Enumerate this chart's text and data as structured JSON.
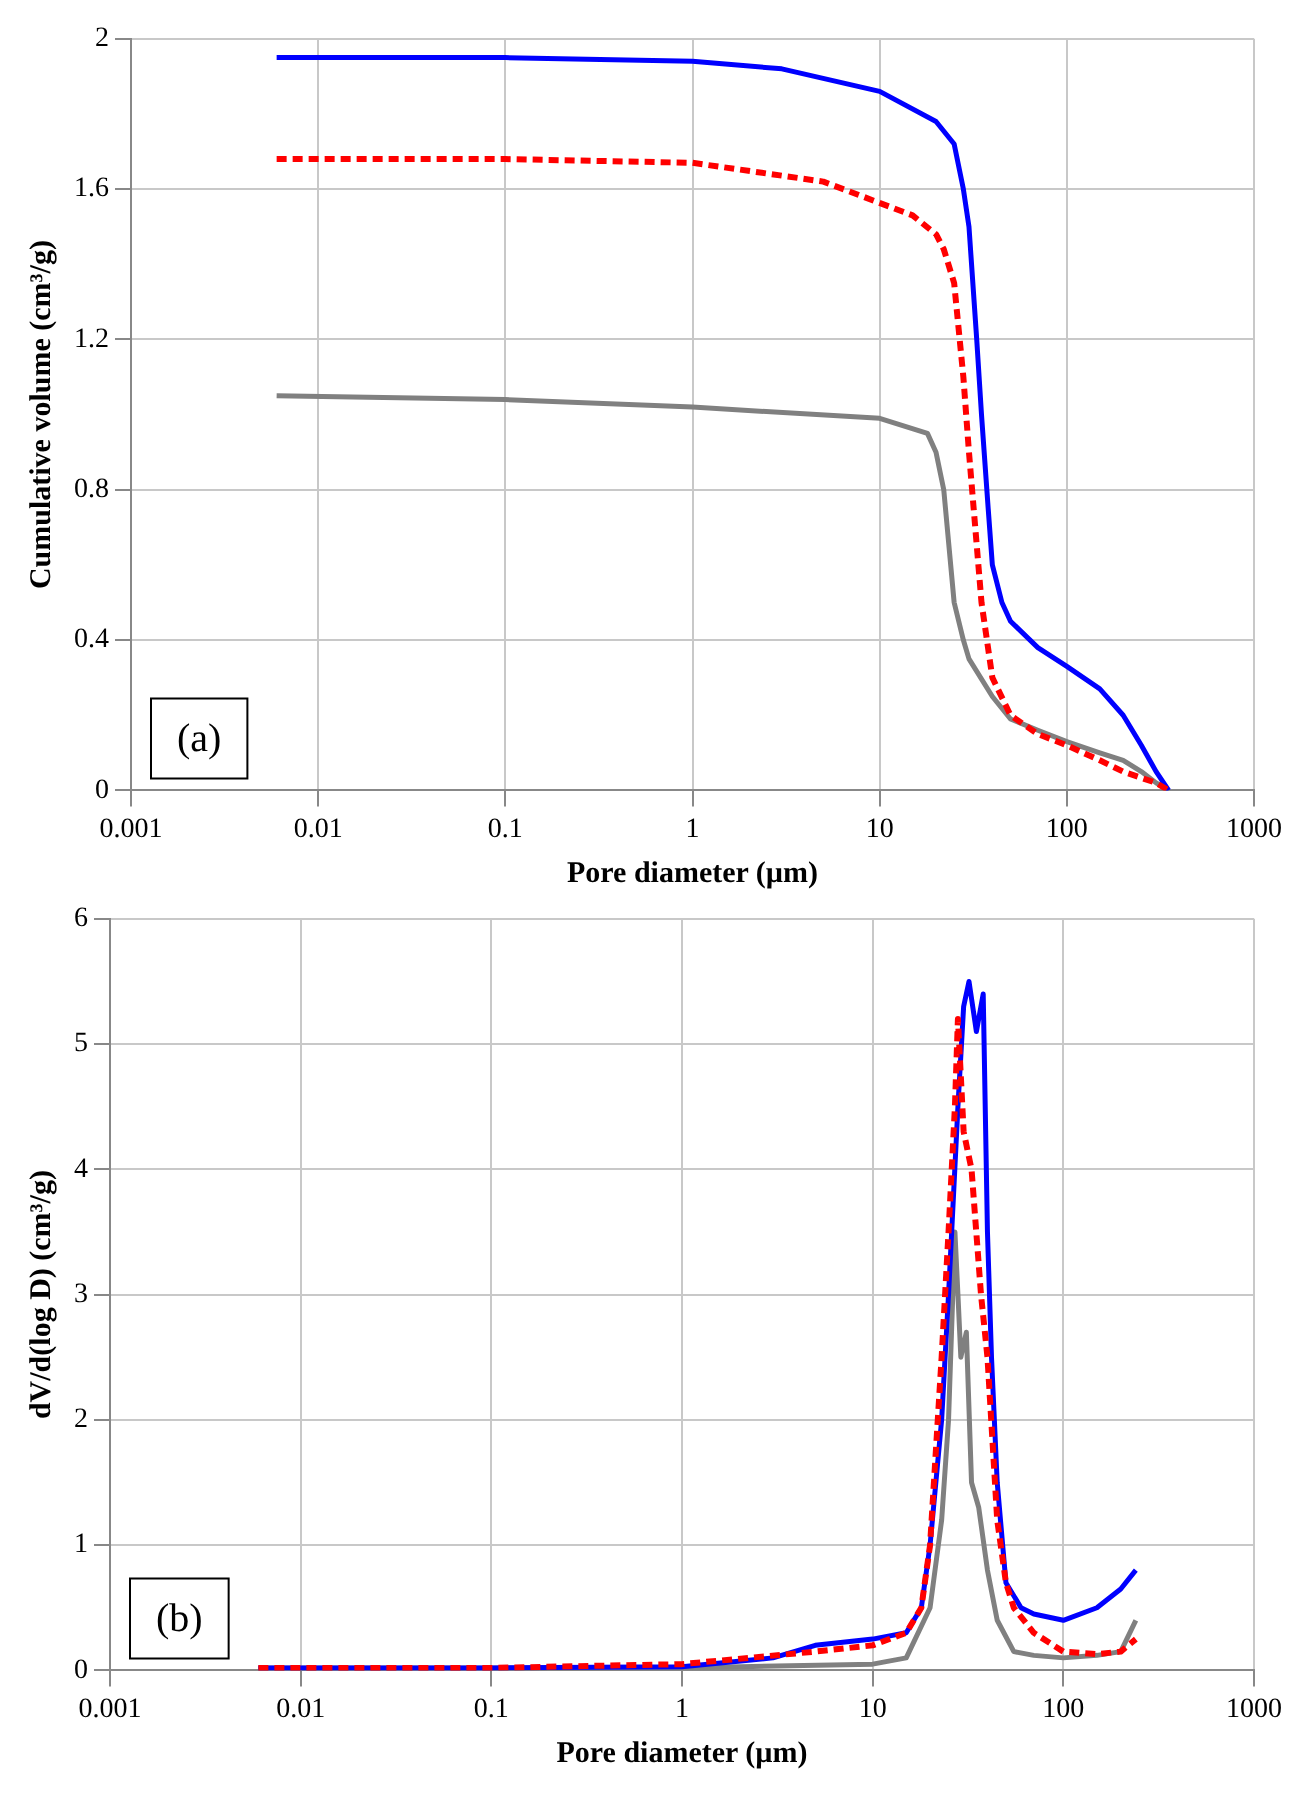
{
  "chart_data": [
    {
      "type": "line",
      "xlabel": "Pore diameter (µm)",
      "ylabel": "Cumulative volume (cm³/g)",
      "log": "x",
      "grid": true,
      "xlim": [
        0.001,
        1000
      ],
      "xticks": [
        0.001,
        0.01,
        0.1,
        1,
        10,
        100,
        1000
      ],
      "ylim": [
        0,
        2
      ],
      "yticks": [
        0,
        0.4,
        0.8,
        1.2,
        1.6,
        2
      ],
      "annotations": [
        "(a)"
      ],
      "series": [
        {
          "color": "#0000ff",
          "line_style": "solid",
          "x": [
            0.006,
            0.1,
            1,
            3,
            10,
            20,
            25,
            28,
            30,
            33,
            35,
            38,
            40,
            45,
            50,
            70,
            100,
            150,
            200,
            250,
            300,
            350
          ],
          "values": [
            1.95,
            1.95,
            1.94,
            1.92,
            1.86,
            1.78,
            1.72,
            1.6,
            1.5,
            1.2,
            1.0,
            0.75,
            0.6,
            0.5,
            0.45,
            0.38,
            0.33,
            0.27,
            0.2,
            0.12,
            0.05,
            0
          ]
        },
        {
          "color": "#ff0000",
          "line_style": "dashed",
          "x": [
            0.006,
            0.1,
            1,
            5,
            15,
            20,
            22,
            25,
            28,
            30,
            35,
            40,
            50,
            70,
            100,
            150,
            200,
            300,
            350
          ],
          "values": [
            1.68,
            1.68,
            1.67,
            1.62,
            1.53,
            1.48,
            1.44,
            1.35,
            1.1,
            0.9,
            0.5,
            0.3,
            0.2,
            0.15,
            0.12,
            0.08,
            0.05,
            0.02,
            0
          ]
        },
        {
          "color": "#808080",
          "line_style": "solid",
          "x": [
            0.006,
            0.1,
            1,
            10,
            18,
            20,
            22,
            25,
            28,
            30,
            40,
            50,
            70,
            100,
            150,
            200,
            250,
            300,
            350
          ],
          "values": [
            1.05,
            1.04,
            1.02,
            0.99,
            0.95,
            0.9,
            0.8,
            0.5,
            0.4,
            0.35,
            0.25,
            0.19,
            0.16,
            0.13,
            0.1,
            0.08,
            0.05,
            0.02,
            0
          ]
        }
      ]
    },
    {
      "type": "line",
      "xlabel": "Pore diameter (µm)",
      "ylabel": "dV/d(log D) (cm³/g)",
      "log": "x",
      "grid": true,
      "xlim": [
        0.001,
        1000
      ],
      "xticks": [
        0.001,
        0.01,
        0.1,
        1,
        10,
        100,
        1000
      ],
      "ylim": [
        0,
        6
      ],
      "yticks": [
        0,
        1,
        2,
        3,
        4,
        5,
        6
      ],
      "annotations": [
        "(b)"
      ],
      "series": [
        {
          "color": "#0000ff",
          "line_style": "solid",
          "x": [
            0.006,
            0.1,
            1,
            3,
            5,
            10,
            15,
            18,
            20,
            23,
            25,
            28,
            30,
            32,
            35,
            38,
            40,
            42,
            45,
            50,
            60,
            70,
            100,
            150,
            200,
            240
          ],
          "values": [
            0.02,
            0.02,
            0.03,
            0.1,
            0.2,
            0.25,
            0.3,
            0.5,
            1.0,
            2.0,
            3.0,
            4.5,
            5.3,
            5.5,
            5.1,
            5.4,
            3.5,
            2.5,
            1.5,
            0.7,
            0.5,
            0.45,
            0.4,
            0.5,
            0.65,
            0.8
          ]
        },
        {
          "color": "#ff0000",
          "line_style": "dashed",
          "x": [
            0.006,
            0.1,
            1,
            5,
            10,
            15,
            18,
            20,
            23,
            25,
            27,
            28,
            30,
            33,
            37,
            40,
            45,
            50,
            55,
            70,
            100,
            150,
            200,
            240
          ],
          "values": [
            0.02,
            0.02,
            0.05,
            0.15,
            0.2,
            0.3,
            0.5,
            1.0,
            2.5,
            3.5,
            4.5,
            5.2,
            4.3,
            4.0,
            3.0,
            2.5,
            1.2,
            0.7,
            0.5,
            0.3,
            0.15,
            0.13,
            0.15,
            0.25
          ]
        },
        {
          "color": "#808080",
          "line_style": "solid",
          "x": [
            0.006,
            0.1,
            1,
            10,
            15,
            20,
            23,
            25,
            27,
            28,
            29,
            31,
            33,
            36,
            40,
            45,
            55,
            70,
            100,
            150,
            200,
            240
          ],
          "values": [
            0.02,
            0.02,
            0.02,
            0.05,
            0.1,
            0.5,
            1.2,
            2.0,
            3.5,
            3.0,
            2.5,
            2.7,
            1.5,
            1.3,
            0.8,
            0.4,
            0.15,
            0.12,
            0.1,
            0.12,
            0.15,
            0.4
          ]
        }
      ]
    }
  ]
}
